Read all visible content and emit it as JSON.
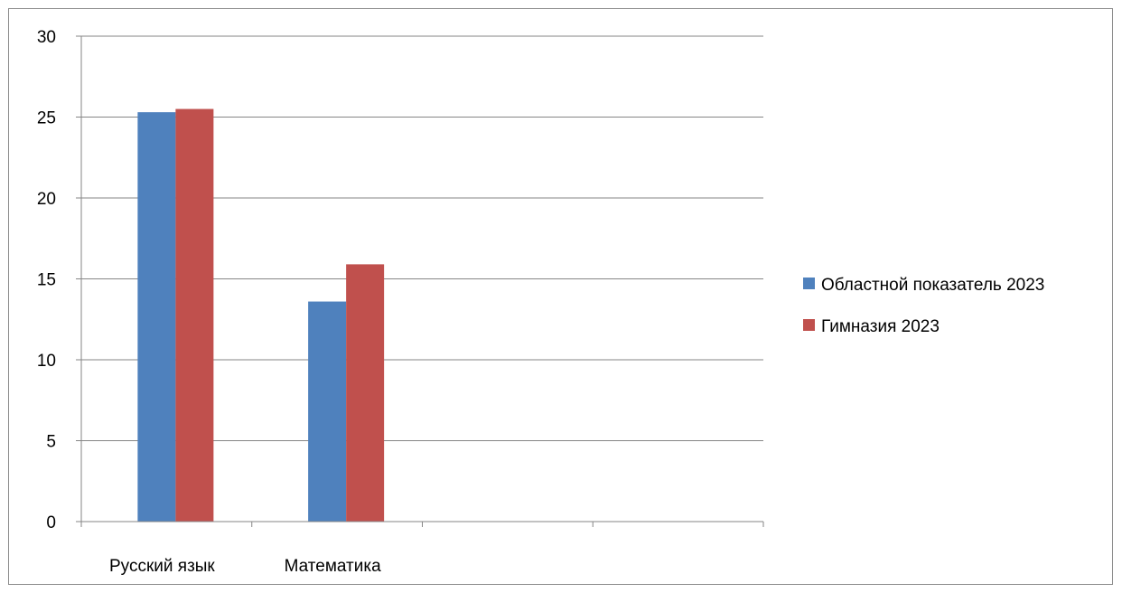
{
  "chart_data": {
    "type": "bar",
    "categories": [
      "Русский язык",
      "Математика",
      "",
      ""
    ],
    "series": [
      {
        "name": "Областной показатель 2023",
        "values": [
          25.3,
          13.6,
          null,
          null
        ],
        "color": "#4f81bd"
      },
      {
        "name": "Гимназия 2023",
        "values": [
          25.5,
          15.9,
          null,
          null
        ],
        "color": "#c0504d"
      }
    ],
    "ylim": [
      0,
      30
    ],
    "yticks": [
      0,
      5,
      10,
      15,
      20,
      25,
      30
    ],
    "grid": true,
    "legend_position": "right"
  }
}
